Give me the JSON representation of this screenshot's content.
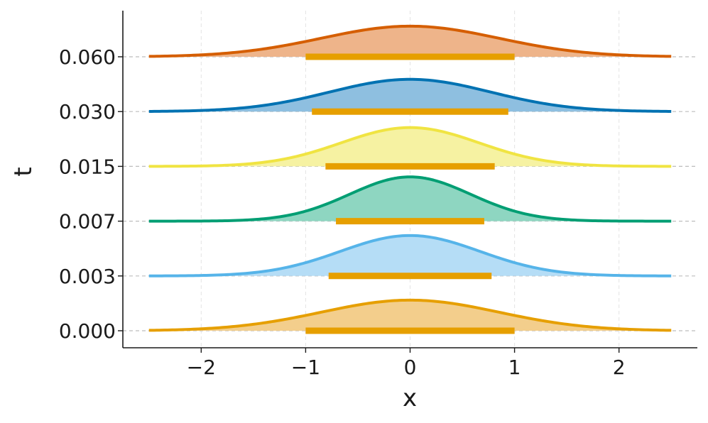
{
  "chart_data": {
    "type": "area",
    "xlabel": "x",
    "ylabel": "t",
    "xlim": [
      -2.75,
      2.75
    ],
    "xticks": [
      -2,
      -1,
      0,
      1,
      2
    ],
    "xtick_labels": [
      "−2",
      "−1",
      "0",
      "1",
      "2"
    ],
    "x_grid": true,
    "x_range": [
      -2.5,
      2.5
    ],
    "interval_color": "#E69F00",
    "series": [
      {
        "t_label": "0.000",
        "color": "#E69F00",
        "fill": "#F3CE8C",
        "sigma": 0.85,
        "amplitude": 0.56,
        "interval": [
          -1.0,
          1.0
        ]
      },
      {
        "t_label": "0.003",
        "color": "#56B4E9",
        "fill": "#B5DDF6",
        "sigma": 0.67,
        "amplitude": 0.74,
        "interval": [
          -0.78,
          0.78
        ]
      },
      {
        "t_label": "0.007",
        "color": "#009E73",
        "fill": "#8ED6C1",
        "sigma": 0.58,
        "amplitude": 0.81,
        "interval": [
          -0.71,
          0.71
        ]
      },
      {
        "t_label": "0.015",
        "color": "#F0E442",
        "fill": "#F6F2A2",
        "sigma": 0.66,
        "amplitude": 0.71,
        "interval": [
          -0.81,
          0.81
        ]
      },
      {
        "t_label": "0.030",
        "color": "#0072B2",
        "fill": "#8EBFE0",
        "sigma": 0.77,
        "amplitude": 0.59,
        "interval": [
          -0.94,
          0.94
        ]
      },
      {
        "t_label": "0.060",
        "color": "#D55E00",
        "fill": "#EEB48A",
        "sigma": 0.85,
        "amplitude": 0.56,
        "interval": [
          -1.0,
          1.0
        ]
      }
    ]
  }
}
